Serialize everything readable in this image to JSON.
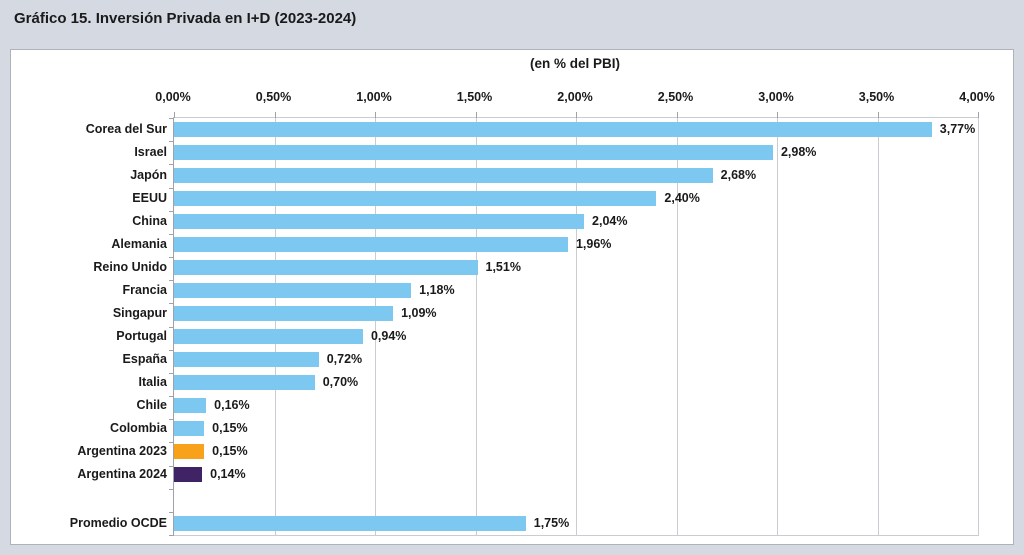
{
  "page": {
    "title": "Gráfico 15. Inversión Privada en I+D (2023-2024)"
  },
  "theme": {
    "page_bg": "#D5D9E2",
    "panel_bg": "#FFFFFF",
    "panel_border": "#AEB2BA",
    "gridline_color": "#C9CDD1",
    "axis_color": "#9FA3A9",
    "text_color": "#1A1A1A",
    "bar_blue": "#7DC8F1",
    "bar_orange": "#F8A11B",
    "bar_purple": "#3F2365"
  },
  "chart_data": {
    "type": "bar",
    "orientation": "horizontal",
    "title": "(en % del PBI)",
    "xlabel": "",
    "ylabel": "",
    "xlim": [
      0,
      4
    ],
    "grid": true,
    "x_ticks": [
      "0,00%",
      "0,50%",
      "1,00%",
      "1,50%",
      "2,00%",
      "2,50%",
      "3,00%",
      "3,50%",
      "4,00%"
    ],
    "x_tick_values": [
      0,
      0.5,
      1,
      1.5,
      2,
      2.5,
      3,
      3.5,
      4
    ],
    "categories": [
      "Corea del Sur",
      "Israel",
      "Japón",
      "EEUU",
      "China",
      "Alemania",
      "Reino Unido",
      "Francia",
      "Singapur",
      "Portugal",
      "España",
      "Italia",
      "Chile",
      "Colombia",
      "Argentina 2023",
      "Argentina 2024"
    ],
    "values": [
      3.77,
      2.98,
      2.68,
      2.4,
      2.04,
      1.96,
      1.51,
      1.18,
      1.09,
      0.94,
      0.72,
      0.7,
      0.16,
      0.15,
      0.15,
      0.14
    ],
    "value_labels": [
      "3,77%",
      "2,98%",
      "2,68%",
      "2,40%",
      "2,04%",
      "1,96%",
      "1,51%",
      "1,18%",
      "1,09%",
      "0,94%",
      "0,72%",
      "0,70%",
      "0,16%",
      "0,15%",
      "0,15%",
      "0,14%"
    ],
    "bar_colors": [
      "#7DC8F1",
      "#7DC8F1",
      "#7DC8F1",
      "#7DC8F1",
      "#7DC8F1",
      "#7DC8F1",
      "#7DC8F1",
      "#7DC8F1",
      "#7DC8F1",
      "#7DC8F1",
      "#7DC8F1",
      "#7DC8F1",
      "#7DC8F1",
      "#7DC8F1",
      "#F8A11B",
      "#3F2365"
    ],
    "summary_row": {
      "category": "Promedio OCDE",
      "value": 1.75,
      "value_label": "1,75%",
      "color": "#7DC8F1"
    },
    "legend": []
  }
}
